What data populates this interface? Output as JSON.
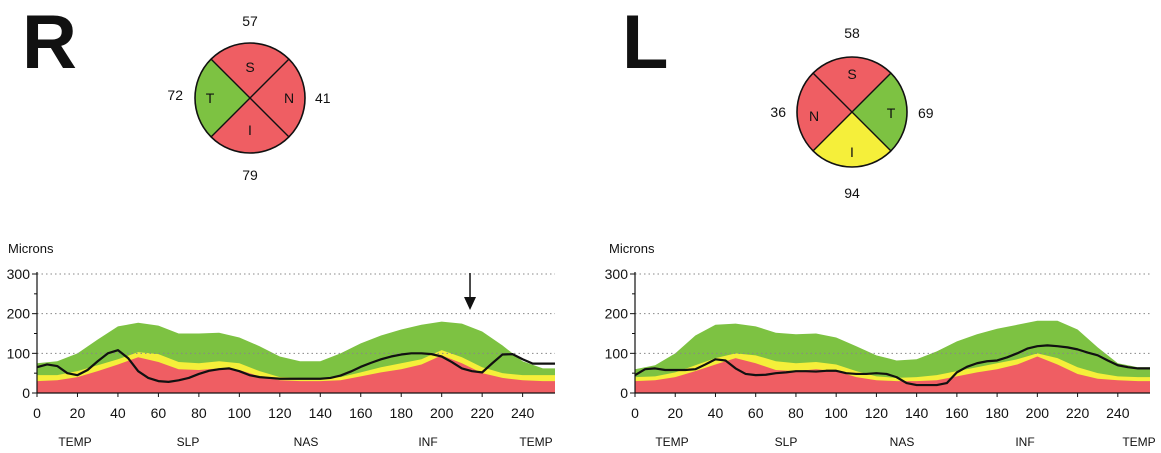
{
  "colors": {
    "normal": "#7dc242",
    "borderline": "#f5ef3a",
    "abnormal": "#ef5e63",
    "measurement": "#111111",
    "grid": "#888888"
  },
  "eyes": [
    {
      "id": "right",
      "eye_label": "R",
      "quadrants": {
        "S": {
          "label": "S",
          "value": "57",
          "status": "abnormal"
        },
        "N": {
          "label": "N",
          "value": "41",
          "status": "abnormal"
        },
        "I": {
          "label": "I",
          "value": "79",
          "status": "abnormal"
        },
        "T": {
          "label": "T",
          "value": "72",
          "status": "normal"
        }
      }
    },
    {
      "id": "left",
      "eye_label": "L",
      "quadrants": {
        "S": {
          "label": "S",
          "value": "58",
          "status": "abnormal"
        },
        "N": {
          "label": "N",
          "value": "36",
          "status": "abnormal"
        },
        "I": {
          "label": "I",
          "value": "94",
          "status": "borderline"
        },
        "T": {
          "label": "T",
          "value": "69",
          "status": "normal"
        }
      }
    }
  ],
  "chart_data": [
    {
      "type": "area",
      "ylabel": "Microns",
      "ylim": [
        0,
        300
      ],
      "xlim": [
        0,
        256
      ],
      "grid": "horizontal dotted at 100, 200, 300",
      "x_ticks": [
        "0",
        "20",
        "40",
        "60",
        "80",
        "100",
        "120",
        "140",
        "160",
        "180",
        "200",
        "220",
        "240"
      ],
      "y_ticks": [
        "0",
        "100",
        "200",
        "300"
      ],
      "region_labels": [
        "TEMP",
        "SLP",
        "NAS",
        "INF",
        "TEMP"
      ],
      "annotation": {
        "type": "arrow-down",
        "x": 214
      },
      "bands": {
        "x": [
          0,
          10,
          20,
          30,
          40,
          50,
          60,
          70,
          80,
          90,
          100,
          110,
          120,
          130,
          140,
          150,
          160,
          170,
          180,
          190,
          200,
          210,
          220,
          230,
          240,
          250,
          256
        ],
        "normal_upper": [
          75,
          80,
          100,
          135,
          168,
          177,
          170,
          150,
          150,
          152,
          140,
          118,
          92,
          80,
          80,
          100,
          125,
          145,
          160,
          172,
          180,
          175,
          155,
          120,
          80,
          62,
          62
        ],
        "borderline_upper": [
          45,
          45,
          55,
          70,
          85,
          103,
          98,
          78,
          75,
          80,
          75,
          55,
          40,
          38,
          38,
          40,
          52,
          65,
          75,
          85,
          108,
          90,
          65,
          50,
          45,
          45,
          45
        ],
        "abnormal_upper": [
          30,
          32,
          40,
          55,
          72,
          90,
          78,
          60,
          58,
          62,
          58,
          42,
          32,
          30,
          30,
          32,
          42,
          52,
          60,
          72,
          95,
          75,
          50,
          38,
          32,
          30,
          30
        ]
      },
      "series": [
        {
          "x": [
            0,
            5,
            10,
            15,
            20,
            25,
            30,
            35,
            40,
            45,
            50,
            55,
            60,
            65,
            70,
            75,
            80,
            85,
            90,
            95,
            100,
            105,
            110,
            115,
            120,
            125,
            130,
            135,
            140,
            145,
            150,
            155,
            160,
            165,
            170,
            175,
            180,
            185,
            190,
            195,
            200,
            205,
            210,
            215,
            220,
            225,
            230,
            235,
            240,
            245,
            250,
            256
          ],
          "values": [
            65,
            72,
            68,
            50,
            45,
            58,
            80,
            100,
            108,
            88,
            55,
            38,
            30,
            28,
            32,
            38,
            48,
            56,
            60,
            62,
            55,
            45,
            40,
            38,
            36,
            36,
            36,
            36,
            36,
            38,
            44,
            54,
            66,
            76,
            85,
            92,
            97,
            100,
            100,
            98,
            92,
            78,
            62,
            55,
            52,
            75,
            97,
            98,
            85,
            74,
            74,
            74
          ]
        }
      ]
    },
    {
      "type": "area",
      "ylabel": "Microns",
      "ylim": [
        0,
        300
      ],
      "xlim": [
        0,
        256
      ],
      "grid": "horizontal dotted at 100, 200, 300",
      "x_ticks": [
        "0",
        "20",
        "40",
        "60",
        "80",
        "100",
        "120",
        "140",
        "160",
        "180",
        "200",
        "220",
        "240"
      ],
      "y_ticks": [
        "0",
        "100",
        "200",
        "300"
      ],
      "region_labels": [
        "TEMP",
        "SLP",
        "NAS",
        "INF",
        "TEMP"
      ],
      "bands": {
        "x": [
          0,
          10,
          20,
          30,
          40,
          50,
          60,
          70,
          80,
          90,
          100,
          110,
          120,
          130,
          140,
          150,
          160,
          170,
          180,
          190,
          200,
          210,
          220,
          230,
          240,
          250,
          256
        ],
        "normal_upper": [
          60,
          70,
          100,
          145,
          172,
          175,
          168,
          152,
          148,
          150,
          140,
          118,
          95,
          82,
          85,
          105,
          130,
          148,
          162,
          172,
          182,
          182,
          160,
          115,
          75,
          65,
          65
        ],
        "borderline_upper": [
          40,
          42,
          52,
          70,
          88,
          100,
          95,
          80,
          75,
          78,
          72,
          55,
          42,
          38,
          40,
          45,
          55,
          65,
          75,
          85,
          100,
          88,
          65,
          50,
          42,
          40,
          40
        ],
        "abnormal_upper": [
          30,
          32,
          40,
          55,
          72,
          88,
          75,
          58,
          55,
          60,
          55,
          40,
          32,
          30,
          30,
          32,
          42,
          52,
          60,
          72,
          92,
          72,
          48,
          36,
          32,
          30,
          30
        ]
      },
      "series": [
        {
          "x": [
            0,
            5,
            10,
            15,
            20,
            25,
            30,
            35,
            40,
            45,
            50,
            55,
            60,
            65,
            70,
            75,
            80,
            85,
            90,
            95,
            100,
            105,
            110,
            115,
            120,
            125,
            130,
            135,
            140,
            145,
            150,
            155,
            160,
            165,
            170,
            175,
            180,
            185,
            190,
            195,
            200,
            205,
            210,
            215,
            220,
            225,
            230,
            235,
            240,
            245,
            250,
            256
          ],
          "values": [
            45,
            60,
            62,
            58,
            58,
            58,
            60,
            72,
            85,
            82,
            62,
            48,
            45,
            46,
            50,
            52,
            55,
            55,
            54,
            56,
            56,
            50,
            48,
            48,
            50,
            48,
            40,
            25,
            20,
            20,
            20,
            25,
            52,
            66,
            75,
            80,
            82,
            90,
            100,
            112,
            118,
            120,
            118,
            115,
            110,
            102,
            95,
            82,
            70,
            65,
            62,
            62
          ]
        }
      ]
    }
  ]
}
